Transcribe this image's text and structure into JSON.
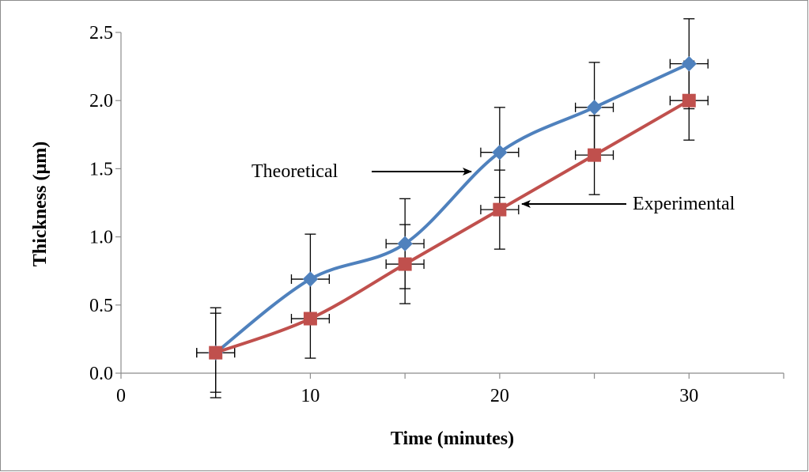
{
  "chart_data": {
    "type": "line",
    "title": "",
    "xlabel": "Time (minutes)",
    "ylabel": "Thickness (µm)",
    "xlim": [
      0,
      35
    ],
    "ylim": [
      0,
      2.5
    ],
    "x_ticks": [
      "0",
      "10",
      "20",
      "30"
    ],
    "x_tick_values": [
      0,
      10,
      20,
      30
    ],
    "y_ticks": [
      "0.0",
      "0.5",
      "1.0",
      "1.5",
      "2.0",
      "2.5"
    ],
    "y_tick_values": [
      0,
      0.5,
      1.0,
      1.5,
      2.0,
      2.5
    ],
    "grid": false,
    "legend": "none",
    "series": [
      {
        "name": "Theoretical",
        "color": "#4F81BD",
        "marker": "diamond",
        "x": [
          5,
          10,
          15,
          20,
          25,
          30
        ],
        "y": [
          0.15,
          0.69,
          0.95,
          1.62,
          1.95,
          2.27
        ],
        "y_error": 0.33,
        "x_error": 1
      },
      {
        "name": "Experimental",
        "color": "#C0504D",
        "marker": "square",
        "x": [
          5,
          10,
          15,
          20,
          25,
          30
        ],
        "y": [
          0.15,
          0.4,
          0.8,
          1.2,
          1.6,
          2.0
        ],
        "y_error": 0.29,
        "x_error": 1
      }
    ],
    "annotations": [
      {
        "text": "Theoretical",
        "points_to": {
          "series": 0,
          "x": 19,
          "y": 1.5
        }
      },
      {
        "text": "Experimental",
        "points_to": {
          "series": 1,
          "x": 21,
          "y": 1.25
        }
      }
    ]
  }
}
